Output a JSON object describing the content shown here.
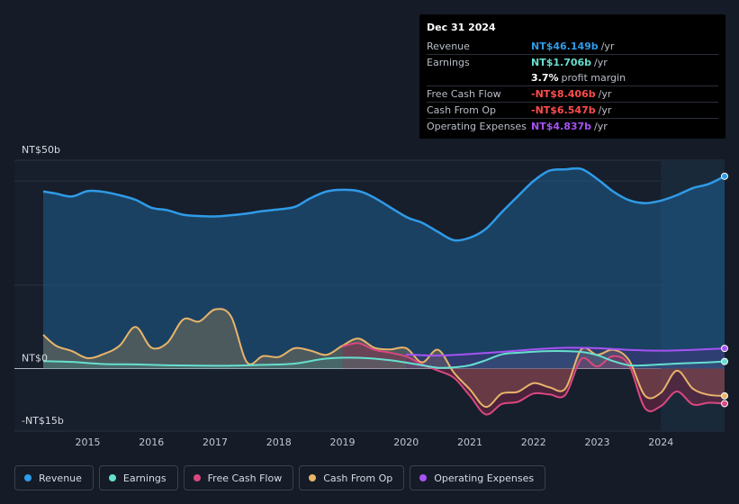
{
  "colors": {
    "revenue": "#2f9be8",
    "earnings": "#66dfcf",
    "fcf": "#d9487f",
    "cfo": "#e8b46a",
    "opex": "#a653f5",
    "negative": "#ff4c4c"
  },
  "tooltip": {
    "date": "Dec 31 2024",
    "rows": [
      {
        "label": "Revenue",
        "value": "NT$46.149b",
        "unit": "/yr",
        "color": "#2f9be8"
      },
      {
        "label": "Earnings",
        "value": "NT$1.706b",
        "unit": "/yr",
        "color": "#66dfcf"
      },
      {
        "label": "",
        "value": "3.7%",
        "unit": "profit margin",
        "color": "#ffffff"
      },
      {
        "label": "Free Cash Flow",
        "value": "-NT$8.406b",
        "unit": "/yr",
        "color": "#ff4c4c"
      },
      {
        "label": "Cash From Op",
        "value": "-NT$6.547b",
        "unit": "/yr",
        "color": "#ff4c4c"
      },
      {
        "label": "Operating Expenses",
        "value": "NT$4.837b",
        "unit": "/yr",
        "color": "#a653f5"
      }
    ]
  },
  "legend": [
    {
      "label": "Revenue",
      "key": "revenue"
    },
    {
      "label": "Earnings",
      "key": "earnings"
    },
    {
      "label": "Free Cash Flow",
      "key": "fcf"
    },
    {
      "label": "Cash From Op",
      "key": "cfo"
    },
    {
      "label": "Operating Expenses",
      "key": "opex"
    }
  ],
  "chart_data": {
    "type": "area",
    "title": "",
    "xlabel": "",
    "ylabel": "",
    "ylim": [
      -15,
      50
    ],
    "y_tick_labels": [
      {
        "value": 50,
        "label": "NT$50b"
      },
      {
        "value": 0,
        "label": "NT$0"
      },
      {
        "value": -15,
        "label": "-NT$15b"
      }
    ],
    "x_ticks": [
      2015,
      2016,
      2017,
      2018,
      2019,
      2020,
      2021,
      2022,
      2023,
      2024
    ],
    "x_range": [
      2014.3,
      2025.0
    ],
    "highlight_start": 2024.0,
    "series": [
      {
        "name": "Revenue",
        "key": "revenue",
        "data": [
          [
            2014.3,
            42.5
          ],
          [
            2014.5,
            42.0
          ],
          [
            2014.75,
            41.3
          ],
          [
            2015.0,
            42.6
          ],
          [
            2015.25,
            42.4
          ],
          [
            2015.5,
            41.6
          ],
          [
            2015.75,
            40.5
          ],
          [
            2016.0,
            38.6
          ],
          [
            2016.25,
            38.0
          ],
          [
            2016.5,
            36.9
          ],
          [
            2016.75,
            36.6
          ],
          [
            2017.0,
            36.5
          ],
          [
            2017.25,
            36.8
          ],
          [
            2017.5,
            37.2
          ],
          [
            2017.75,
            37.8
          ],
          [
            2018.0,
            38.2
          ],
          [
            2018.25,
            38.8
          ],
          [
            2018.5,
            40.9
          ],
          [
            2018.75,
            42.5
          ],
          [
            2019.0,
            42.9
          ],
          [
            2019.25,
            42.6
          ],
          [
            2019.5,
            41.0
          ],
          [
            2020.0,
            36.4
          ],
          [
            2020.25,
            35.0
          ],
          [
            2020.5,
            32.8
          ],
          [
            2020.75,
            30.8
          ],
          [
            2021.0,
            31.4
          ],
          [
            2021.25,
            33.5
          ],
          [
            2021.5,
            37.5
          ],
          [
            2021.75,
            41.3
          ],
          [
            2022.0,
            45.0
          ],
          [
            2022.25,
            47.5
          ],
          [
            2022.5,
            47.8
          ],
          [
            2022.75,
            47.9
          ],
          [
            2023.0,
            45.5
          ],
          [
            2023.25,
            42.5
          ],
          [
            2023.5,
            40.4
          ],
          [
            2023.75,
            39.7
          ],
          [
            2024.0,
            40.3
          ],
          [
            2024.25,
            41.6
          ],
          [
            2024.5,
            43.3
          ],
          [
            2024.75,
            44.3
          ],
          [
            2025.0,
            46.149
          ]
        ]
      },
      {
        "name": "Earnings",
        "key": "earnings",
        "data": [
          [
            2014.3,
            1.8
          ],
          [
            2014.75,
            1.6
          ],
          [
            2015.25,
            1.1
          ],
          [
            2015.75,
            1.0
          ],
          [
            2016.25,
            0.8
          ],
          [
            2016.75,
            0.7
          ],
          [
            2017.25,
            0.7
          ],
          [
            2017.75,
            0.9
          ],
          [
            2018.25,
            1.2
          ],
          [
            2018.75,
            2.4
          ],
          [
            2019.25,
            2.6
          ],
          [
            2019.75,
            2.0
          ],
          [
            2020.25,
            0.8
          ],
          [
            2020.5,
            0.2
          ],
          [
            2020.75,
            0.3
          ],
          [
            2021.0,
            0.8
          ],
          [
            2021.25,
            2.0
          ],
          [
            2021.5,
            3.4
          ],
          [
            2021.75,
            3.8
          ],
          [
            2022.25,
            4.2
          ],
          [
            2022.75,
            4.0
          ],
          [
            2023.0,
            3.2
          ],
          [
            2023.25,
            1.8
          ],
          [
            2023.5,
            0.8
          ],
          [
            2023.75,
            0.8
          ],
          [
            2024.25,
            1.2
          ],
          [
            2024.75,
            1.5
          ],
          [
            2025.0,
            1.706
          ]
        ]
      },
      {
        "name": "Free Cash Flow",
        "key": "fcf",
        "data": [
          [
            2019.0,
            5.3
          ],
          [
            2019.25,
            6.1
          ],
          [
            2019.5,
            4.5
          ],
          [
            2019.75,
            3.8
          ],
          [
            2020.0,
            2.9
          ],
          [
            2020.25,
            1.0
          ],
          [
            2020.5,
            -0.5
          ],
          [
            2020.75,
            -2.2
          ],
          [
            2021.0,
            -6.5
          ],
          [
            2021.25,
            -11.0
          ],
          [
            2021.5,
            -8.5
          ],
          [
            2021.75,
            -8.0
          ],
          [
            2022.0,
            -6.0
          ],
          [
            2022.25,
            -6.2
          ],
          [
            2022.5,
            -6.3
          ],
          [
            2022.75,
            2.3
          ],
          [
            2023.0,
            0.5
          ],
          [
            2023.25,
            3.0
          ],
          [
            2023.5,
            0.8
          ],
          [
            2023.75,
            -9.5
          ],
          [
            2024.0,
            -9.0
          ],
          [
            2024.25,
            -5.5
          ],
          [
            2024.5,
            -8.6
          ],
          [
            2024.75,
            -8.2
          ],
          [
            2025.0,
            -8.406
          ]
        ]
      },
      {
        "name": "Cash From Op",
        "key": "cfo",
        "data": [
          [
            2014.3,
            8.1
          ],
          [
            2014.5,
            5.5
          ],
          [
            2014.75,
            4.2
          ],
          [
            2015.0,
            2.5
          ],
          [
            2015.25,
            3.5
          ],
          [
            2015.5,
            5.5
          ],
          [
            2015.75,
            10.0
          ],
          [
            2016.0,
            5.0
          ],
          [
            2016.25,
            6.2
          ],
          [
            2016.5,
            11.8
          ],
          [
            2016.75,
            11.3
          ],
          [
            2017.0,
            14.2
          ],
          [
            2017.25,
            12.5
          ],
          [
            2017.5,
            1.5
          ],
          [
            2017.75,
            3.0
          ],
          [
            2018.0,
            2.8
          ],
          [
            2018.25,
            4.9
          ],
          [
            2018.5,
            4.3
          ],
          [
            2018.75,
            3.3
          ],
          [
            2019.0,
            5.5
          ],
          [
            2019.25,
            7.2
          ],
          [
            2019.5,
            5.0
          ],
          [
            2019.75,
            4.6
          ],
          [
            2020.0,
            4.9
          ],
          [
            2020.25,
            1.5
          ],
          [
            2020.5,
            4.5
          ],
          [
            2020.75,
            -1.0
          ],
          [
            2021.0,
            -5.0
          ],
          [
            2021.25,
            -9.2
          ],
          [
            2021.5,
            -6.0
          ],
          [
            2021.75,
            -5.6
          ],
          [
            2022.0,
            -3.5
          ],
          [
            2022.25,
            -4.5
          ],
          [
            2022.5,
            -4.8
          ],
          [
            2022.75,
            4.6
          ],
          [
            2023.0,
            3.3
          ],
          [
            2023.25,
            4.5
          ],
          [
            2023.5,
            2.0
          ],
          [
            2023.75,
            -6.5
          ],
          [
            2024.0,
            -5.8
          ],
          [
            2024.25,
            -0.5
          ],
          [
            2024.5,
            -4.8
          ],
          [
            2024.75,
            -6.3
          ],
          [
            2025.0,
            -6.547
          ]
        ]
      },
      {
        "name": "Operating Expenses",
        "key": "opex",
        "data": [
          [
            2020.0,
            3.4
          ],
          [
            2020.5,
            3.1
          ],
          [
            2021.0,
            3.5
          ],
          [
            2021.5,
            4.0
          ],
          [
            2022.0,
            4.6
          ],
          [
            2022.5,
            5.0
          ],
          [
            2023.0,
            4.9
          ],
          [
            2023.5,
            4.5
          ],
          [
            2024.0,
            4.3
          ],
          [
            2024.5,
            4.5
          ],
          [
            2025.0,
            4.837
          ]
        ]
      }
    ]
  }
}
